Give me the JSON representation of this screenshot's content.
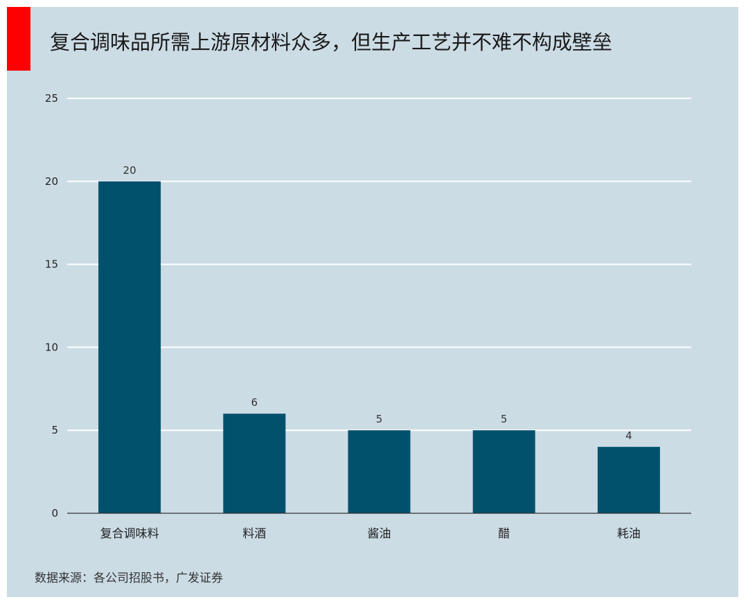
{
  "title": "复合调味品所需上游原材料众多，但生产工艺并不难不构成壁垒",
  "source": "数据来源：各公司招股书，广发证券",
  "colors": {
    "panel": "#ccdce5",
    "accent": "#ff0000",
    "bar": "#01516d",
    "grid": "#ffffff"
  },
  "chart_data": {
    "type": "bar",
    "categories": [
      "复合调味料",
      "料酒",
      "酱油",
      "醋",
      "耗油"
    ],
    "values": [
      20,
      6,
      5,
      5,
      4
    ],
    "ylim": [
      0,
      25
    ],
    "yticks": [
      0,
      5,
      10,
      15,
      20,
      25
    ],
    "grid": true,
    "legend": "none"
  }
}
